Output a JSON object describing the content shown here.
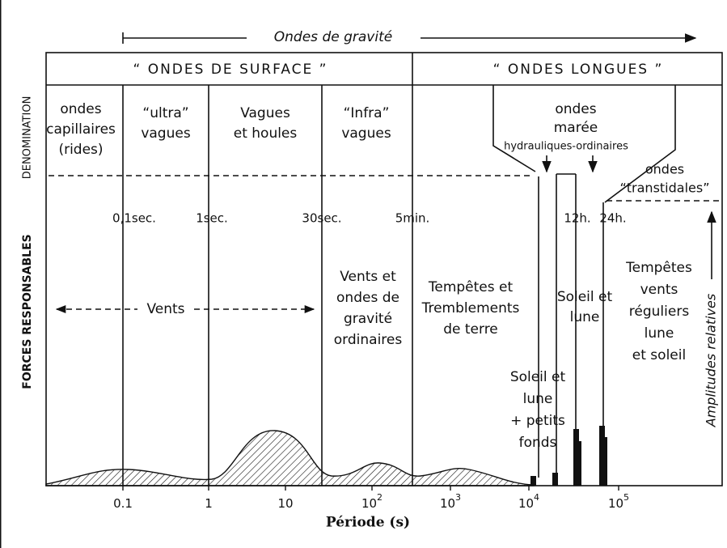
{
  "top_arrow": "Ondes de gravité",
  "header": {
    "surface": "“ ONDES DE SURFACE ”",
    "longues": "“ ONDES LONGUES ”"
  },
  "side_labels": {
    "denomination": "DENOMINATION",
    "forces": "FORCES RESPONSABLES",
    "amplitudes": "Amplitudes relatives"
  },
  "denominations": [
    [
      "ondes",
      "capillaires",
      "(rides)"
    ],
    [
      "“ultra”",
      "vagues"
    ],
    [
      "Vagues",
      "et houles"
    ],
    [
      "“Infra”",
      "vagues"
    ],
    [
      "ondes",
      "marée"
    ],
    [
      "hydrauliques-ordinaires"
    ],
    [
      "ondes",
      "“transtidales”"
    ]
  ],
  "periods": [
    "0,1sec.",
    "1sec.",
    "30sec.",
    "5min.",
    "12h.",
    "24h."
  ],
  "forces": [
    [
      "Vents"
    ],
    [
      "Vents et",
      "ondes de",
      "gravité",
      "ordinaires"
    ],
    [
      "Tempêtes  et",
      "Tremblements",
      "de terre"
    ],
    [
      "Soleil et",
      "lune"
    ],
    [
      "Soleil et",
      "lune",
      "+ petits",
      "fonds"
    ],
    [
      "Tempêtes",
      "vents",
      "réguliers",
      "lune",
      "et soleil"
    ]
  ],
  "axis": {
    "ticks": [
      {
        "base": "0.1"
      },
      {
        "base": "1"
      },
      {
        "base": "10"
      },
      {
        "base": "10",
        "exp": "2"
      },
      {
        "base": "10",
        "exp": "3"
      },
      {
        "base": "10",
        "exp": "4"
      },
      {
        "base": "10",
        "exp": "5"
      }
    ],
    "label": "Période (s)"
  }
}
